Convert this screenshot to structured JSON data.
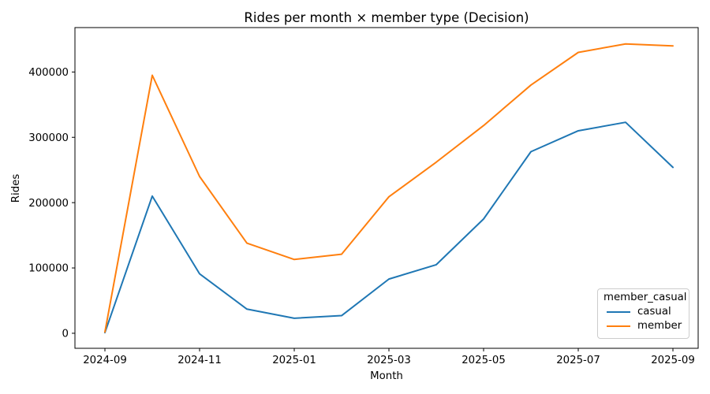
{
  "chart_data": {
    "type": "line",
    "title": "Rides per month × member type (Decision)",
    "xlabel": "Month",
    "ylabel": "Rides",
    "x": [
      "2024-09",
      "2024-10",
      "2024-11",
      "2024-12",
      "2025-01",
      "2025-02",
      "2025-03",
      "2025-04",
      "2025-05",
      "2025-06",
      "2025-07",
      "2025-08",
      "2025-09"
    ],
    "x_tick_labels": [
      "2024-09",
      "2024-11",
      "2025-01",
      "2025-03",
      "2025-05",
      "2025-07",
      "2025-09"
    ],
    "y_ticks": [
      0,
      100000,
      200000,
      300000,
      400000
    ],
    "ylim": [
      -23000,
      468000
    ],
    "grid": false,
    "series": [
      {
        "name": "casual",
        "color": "#1f77b4",
        "values": [
          1000,
          210000,
          91000,
          37000,
          23000,
          27000,
          83000,
          105000,
          175000,
          278000,
          310000,
          323000,
          254000
        ]
      },
      {
        "name": "member",
        "color": "#ff7f0e",
        "values": [
          2000,
          395000,
          240000,
          138000,
          113000,
          121000,
          209000,
          262000,
          318000,
          380000,
          430000,
          443000,
          440000
        ]
      }
    ],
    "legend": {
      "title": "member_casual",
      "position": "lower right"
    }
  }
}
